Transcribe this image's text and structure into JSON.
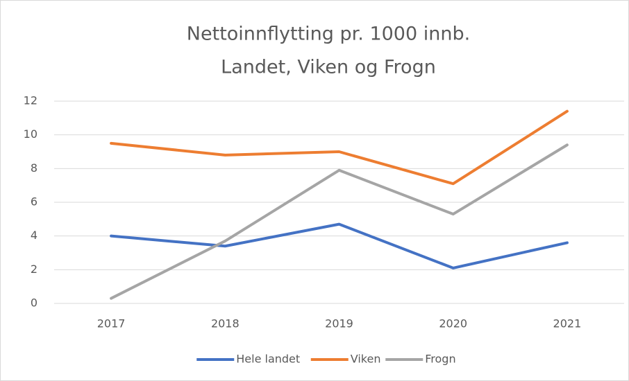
{
  "chart_data": {
    "type": "line",
    "title": "Nettoinnflytting pr. 1000 innb.",
    "subtitle": "Landet, Viken og Frogn",
    "categories": [
      "2017",
      "2018",
      "2019",
      "2020",
      "2021"
    ],
    "series": [
      {
        "name": "Hele landet",
        "color": "#4472c4",
        "values": [
          4.0,
          3.4,
          4.7,
          2.1,
          3.6
        ]
      },
      {
        "name": "Viken",
        "color": "#ed7d31",
        "values": [
          9.5,
          8.8,
          9.0,
          7.1,
          11.4
        ]
      },
      {
        "name": "Frogn",
        "color": "#a5a5a5",
        "values": [
          0.3,
          3.7,
          7.9,
          5.3,
          9.4
        ]
      }
    ],
    "ylim": [
      0,
      12
    ],
    "yticks": [
      0,
      2,
      4,
      6,
      8,
      10,
      12
    ],
    "grid": true,
    "legend": "bottom"
  }
}
